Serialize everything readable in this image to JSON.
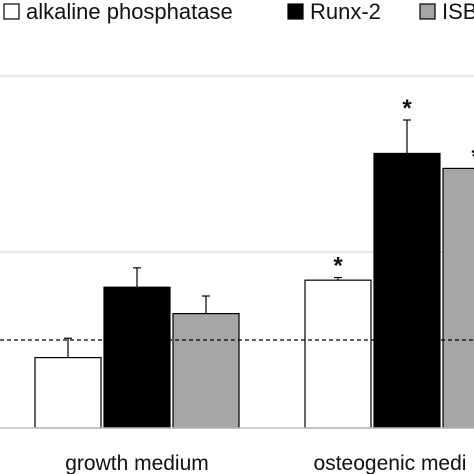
{
  "chart_data": {
    "type": "bar",
    "title": "",
    "xlabel": "",
    "ylabel": "",
    "categories": [
      "growth medium",
      "osteogenic medi"
    ],
    "series": [
      {
        "name": "alkaline phosphatase",
        "color": "#ffffff",
        "values": [
          0.8,
          1.68
        ],
        "errors": [
          0.22,
          0.03
        ],
        "significance": [
          "",
          "*"
        ]
      },
      {
        "name": "Runx-2",
        "color": "#000000",
        "values": [
          1.6,
          3.12
        ],
        "errors": [
          0.22,
          0.38
        ],
        "significance": [
          "",
          "*"
        ]
      },
      {
        "name": "ISBP",
        "color": "#a6a6a6",
        "values": [
          1.3,
          2.95
        ],
        "errors": [
          0.2,
          0
        ],
        "significance": [
          "",
          "*"
        ]
      }
    ],
    "reference_line": {
      "value": 1.0,
      "style": "dashed"
    },
    "ylim": [
      0,
      4
    ],
    "gridlines": [
      2,
      4
    ],
    "grid": true,
    "legend_position": "top"
  }
}
